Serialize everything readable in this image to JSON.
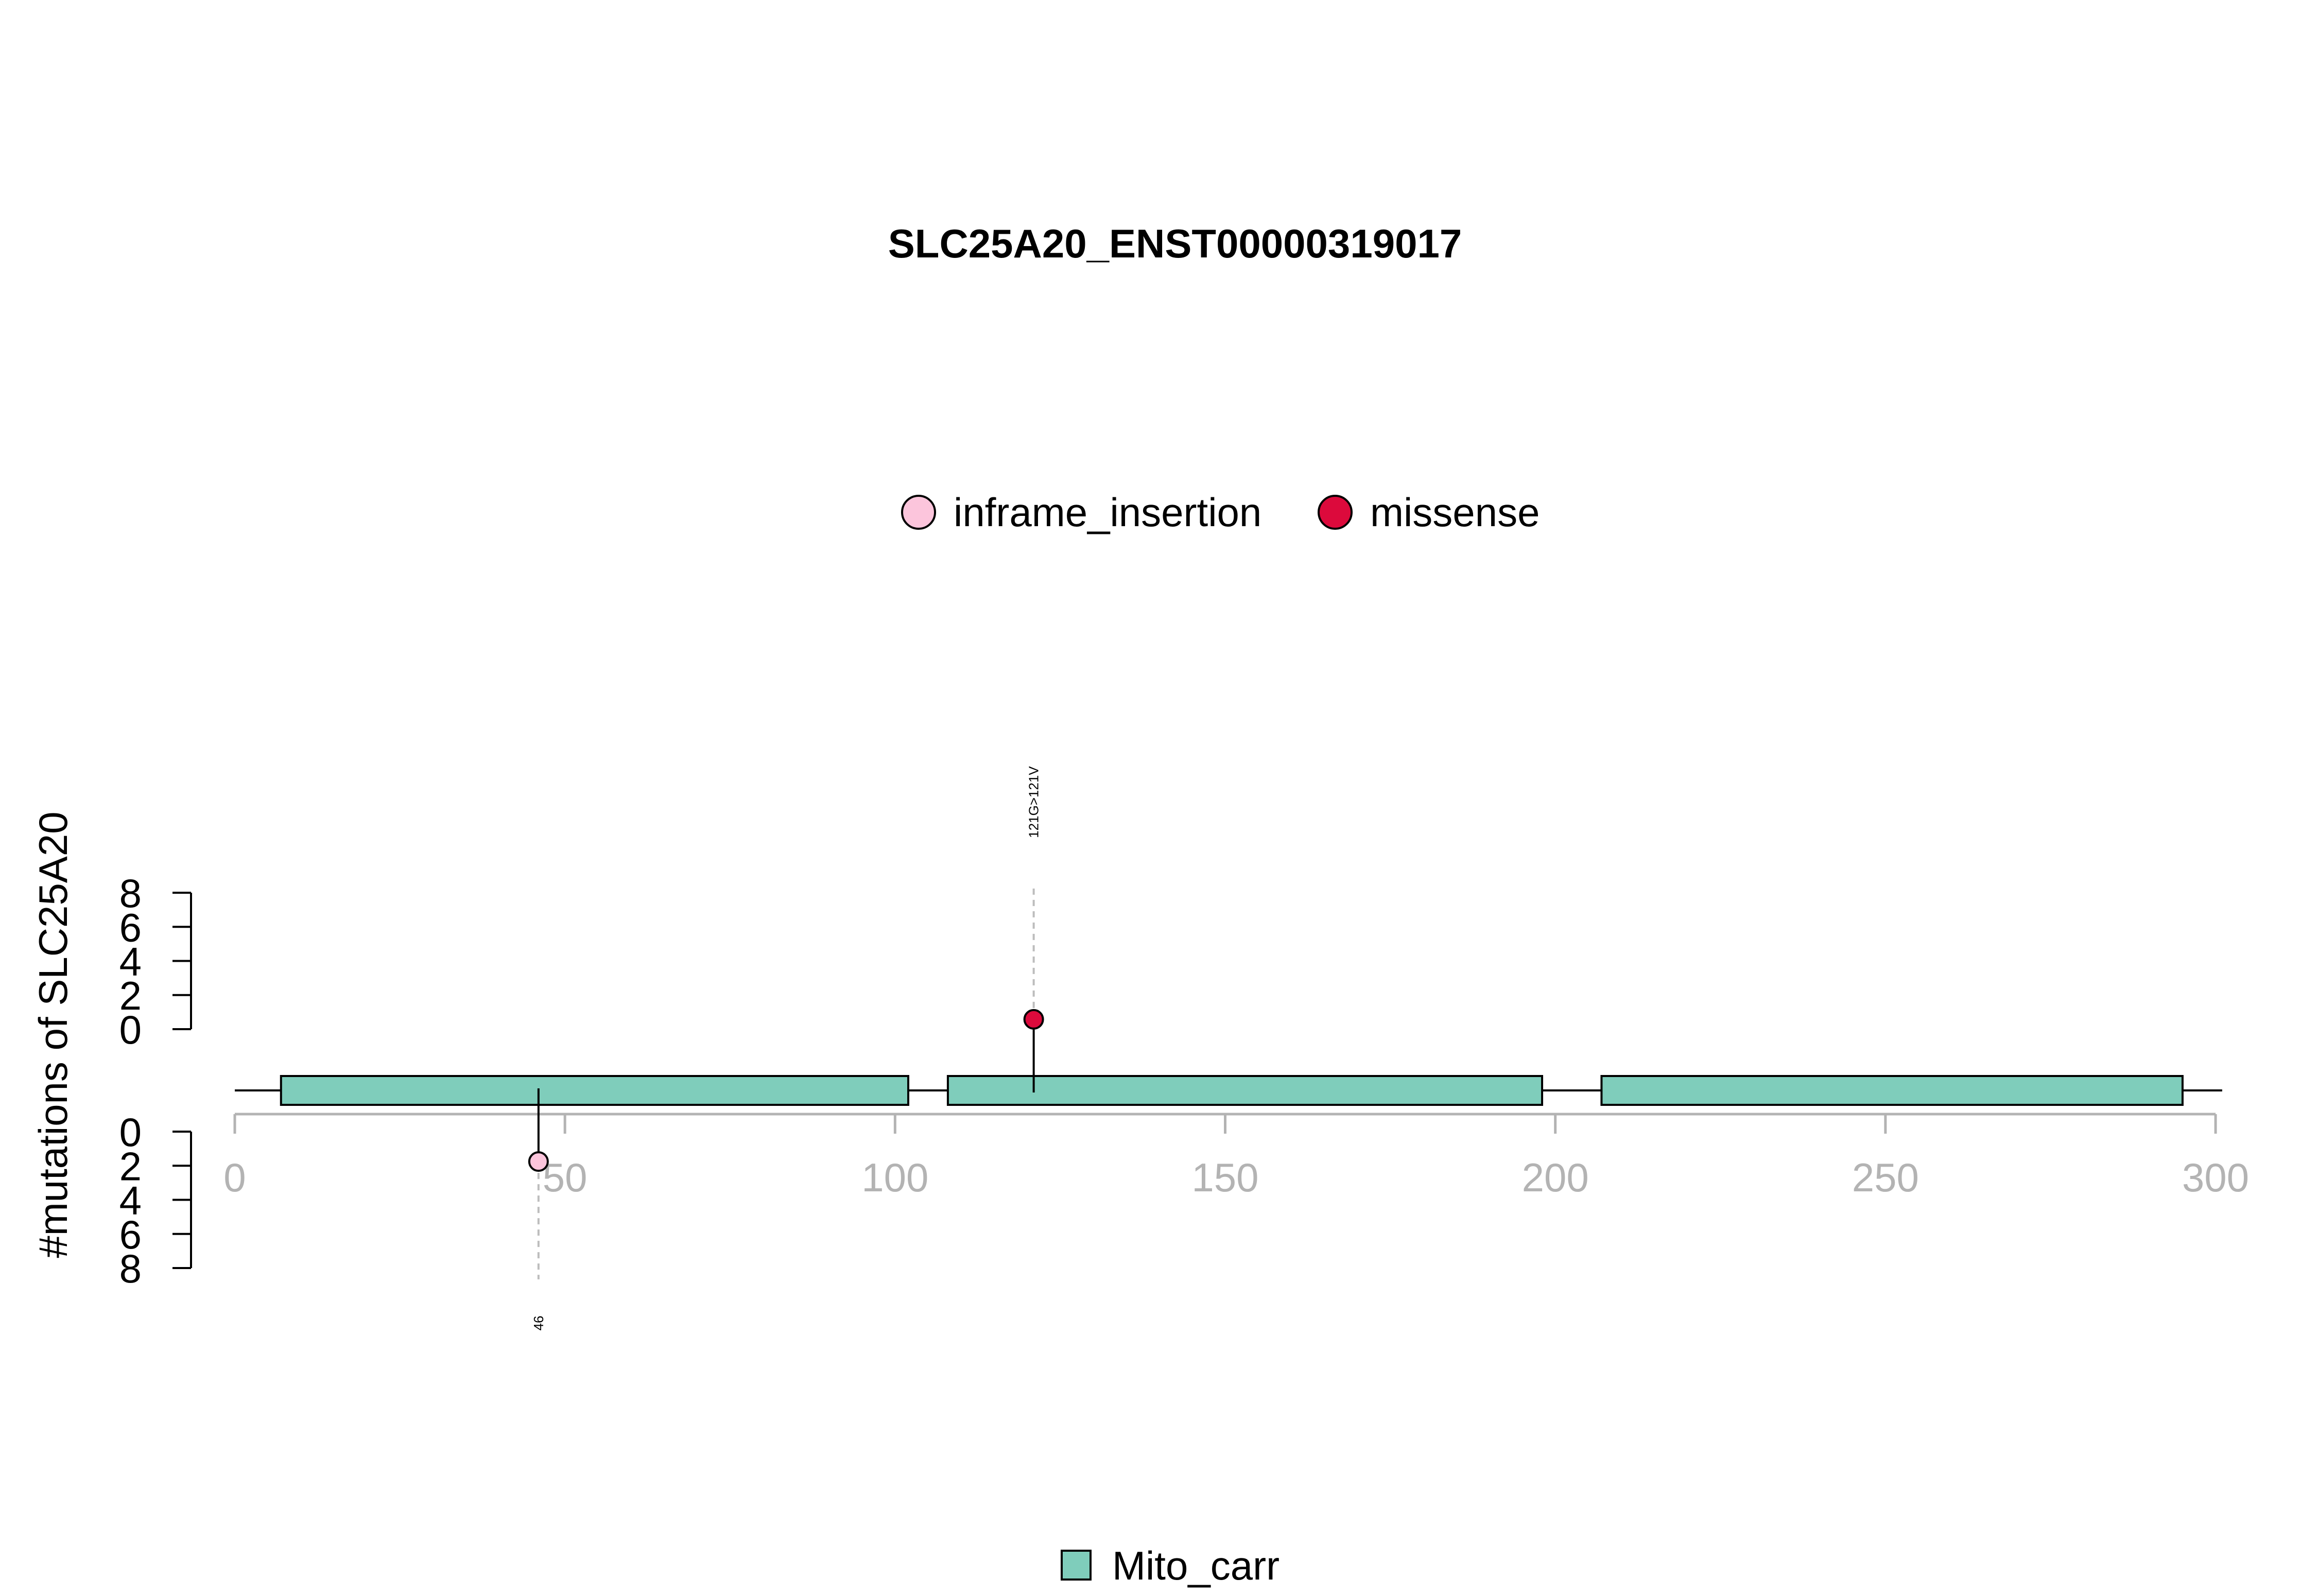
{
  "chart_data": {
    "type": "lollipop",
    "title": "SLC25A20_ENST00000319017",
    "ylabel": "#mutations of SLC25A20",
    "x_axis": {
      "range": [
        0,
        300
      ],
      "ticks": [
        0,
        50,
        100,
        150,
        200,
        250,
        300
      ],
      "tick_labels": [
        "0",
        "50",
        "100",
        "150",
        "200",
        "250",
        "300"
      ],
      "color": "#b3b3b3"
    },
    "y_axis_upper": {
      "range": [
        0,
        8
      ],
      "ticks": [
        0,
        2,
        4,
        6,
        8
      ],
      "tick_labels": [
        "0",
        "2",
        "4",
        "6",
        "8"
      ]
    },
    "y_axis_lower": {
      "range": [
        0,
        8
      ],
      "ticks": [
        0,
        2,
        4,
        6,
        8
      ],
      "tick_labels": [
        "0",
        "2",
        "4",
        "6",
        "8"
      ]
    },
    "protein_length": 301,
    "domains": [
      {
        "name": "Mito_carr",
        "start": 7,
        "end": 102,
        "color": "#7fcdbb"
      },
      {
        "name": "Mito_carr",
        "start": 108,
        "end": 198,
        "color": "#7fcdbb"
      },
      {
        "name": "Mito_carr",
        "start": 207,
        "end": 295,
        "color": "#7fcdbb"
      }
    ],
    "domain_legend": [
      {
        "name": "Mito_carr",
        "color": "#7fcdbb"
      }
    ],
    "mutation_legend": [
      {
        "name": "inframe_insertion",
        "color": "#fcc5dc"
      },
      {
        "name": "missense",
        "color": "#dc0a3c"
      }
    ],
    "mutations": [
      {
        "position": 121,
        "count": 1,
        "side": "upper",
        "type": "missense",
        "label": "121G>121V",
        "color": "#dc0a3c"
      },
      {
        "position": 46,
        "count": 1,
        "side": "lower",
        "type": "inframe_insertion",
        "label": "46",
        "color": "#fcc5dc"
      }
    ]
  }
}
